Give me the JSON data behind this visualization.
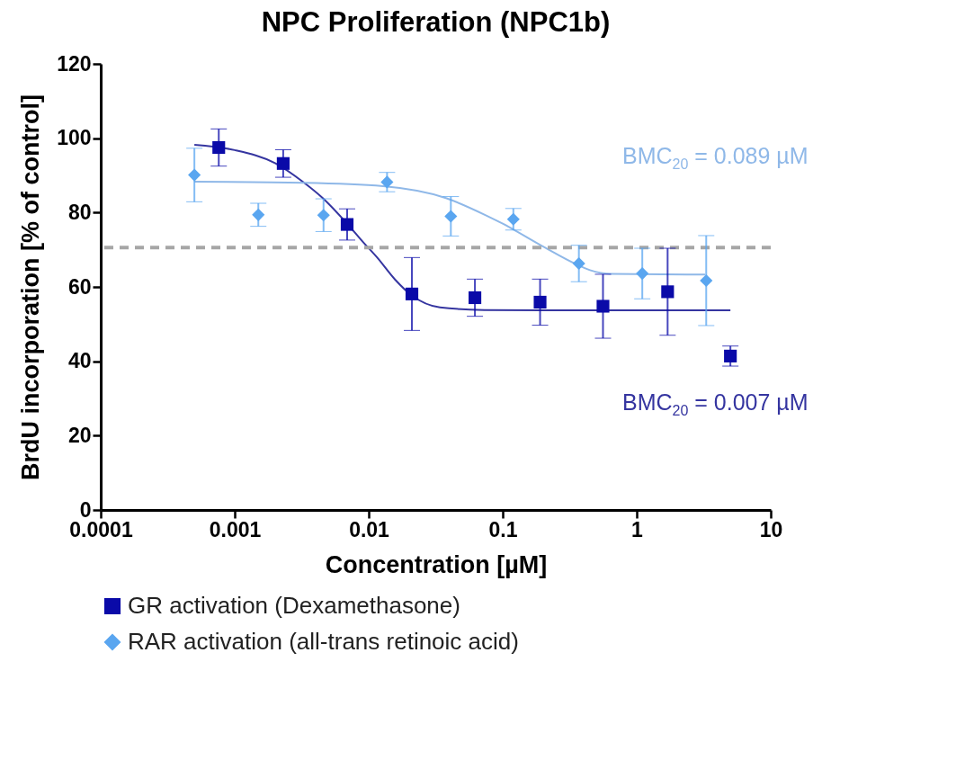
{
  "chart_data": {
    "type": "scatter",
    "title": "NPC Proliferation (NPC1b)",
    "xlabel": "Concentration [µM]",
    "ylabel": "BrdU incorporation [% of control]",
    "log": "x",
    "xlim": [
      0.0001,
      10
    ],
    "xticks": [
      0.0001,
      0.001,
      0.01,
      0.1,
      1,
      10
    ],
    "ylim": [
      0,
      120
    ],
    "yticks": [
      0,
      20,
      40,
      60,
      80,
      100,
      120
    ],
    "grid": false,
    "legend": "bottom",
    "annotations": [
      "BMC$_{20}$ = 0.089 µM",
      "BMC$_{20}$ = 0.007 µM"
    ],
    "ref_lines": [
      {
        "axis": "y",
        "value": 70.6,
        "label": null,
        "color": "#a6a6a6",
        "line_style": "dashed"
      }
    ],
    "series": [
      {
        "name": "GR activation (Dexamethasone)",
        "type": "scatter",
        "marker": "square",
        "color": "#0a0aa8",
        "x": [
          0.00076,
          0.0023,
          0.0069,
          0.021,
          0.062,
          0.19,
          0.56,
          1.7,
          5
        ],
        "values": [
          97.5,
          93.2,
          76.8,
          58.1,
          57.1,
          55.9,
          54.8,
          58.7,
          41.4
        ],
        "errors": [
          5,
          3.7,
          4.2,
          9.8,
          5,
          6.2,
          8.6,
          11.7,
          2.7
        ]
      },
      {
        "name": "RAR activation (all-trans retinoic acid)",
        "type": "scatter",
        "marker": "diamond",
        "color": "#5aa6f0",
        "x": [
          0.0005,
          0.0015,
          0.0046,
          0.0137,
          0.041,
          0.12,
          0.37,
          1.1,
          3.3
        ],
        "values": [
          90.1,
          79.4,
          79.3,
          88.2,
          79,
          78.2,
          66.3,
          63.6,
          61.7
        ],
        "errors": [
          7.2,
          3.1,
          4.4,
          2.6,
          5.3,
          2.9,
          4.9,
          6.8,
          12.1
        ]
      },
      {
        "type": "line",
        "marker": "none",
        "color": "#3535a0",
        "x": [
          0.0005,
          0.001,
          0.002,
          0.0033,
          0.0045,
          0.0069,
          0.0091,
          0.0115,
          0.0157,
          0.021,
          0.034,
          0.073,
          0.2,
          1,
          5
        ],
        "values": [
          98.2,
          96.8,
          93.3,
          88,
          84,
          77,
          72,
          68,
          62,
          57.7,
          54.5,
          53.8,
          53.7,
          53.7,
          53.7
        ]
      },
      {
        "type": "line",
        "marker": "none",
        "color": "#8fb8e8",
        "x": [
          0.0005,
          0.0033,
          0.0128,
          0.0377,
          0.0735,
          0.1,
          0.206,
          0.344,
          0.448,
          0.64,
          3.24
        ],
        "values": [
          88.3,
          88,
          87.1,
          83.9,
          79.4,
          77,
          70.6,
          66.3,
          64.5,
          63.5,
          63.3
        ]
      }
    ]
  }
}
